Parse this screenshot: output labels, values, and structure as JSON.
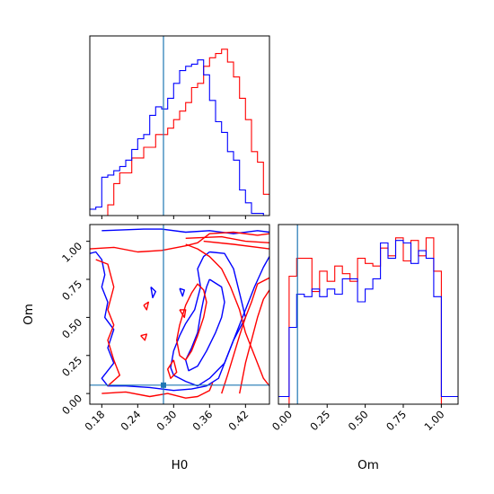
{
  "chart_data": [
    {
      "panel": "H0 marginal",
      "type": "step-histogram",
      "xlim": [
        0.16,
        0.46
      ],
      "truth_x": 0.283,
      "series": [
        {
          "color": "#ff0000",
          "edges": [
            0.16,
            0.19,
            0.2,
            0.21,
            0.22,
            0.23,
            0.24,
            0.25,
            0.26,
            0.27,
            0.28,
            0.29,
            0.3,
            0.31,
            0.32,
            0.33,
            0.34,
            0.35,
            0.36,
            0.37,
            0.38,
            0.39,
            0.4,
            0.41,
            0.42,
            0.43,
            0.44,
            0.45,
            0.46
          ],
          "values": [
            0,
            5,
            15,
            20,
            20,
            27,
            27,
            32,
            32,
            38,
            38,
            41,
            45,
            49,
            53,
            60,
            62,
            70,
            74,
            76,
            78,
            72,
            65,
            55,
            45,
            30,
            25,
            10
          ]
        },
        {
          "color": "#0000ff",
          "edges": [
            0.16,
            0.17,
            0.18,
            0.19,
            0.2,
            0.21,
            0.22,
            0.23,
            0.24,
            0.25,
            0.26,
            0.27,
            0.28,
            0.29,
            0.3,
            0.31,
            0.32,
            0.33,
            0.34,
            0.35,
            0.36,
            0.37,
            0.38,
            0.39,
            0.4,
            0.41,
            0.42,
            0.43,
            0.44,
            0.45,
            0.46
          ],
          "values": [
            3,
            4,
            18,
            19,
            21,
            23,
            26,
            31,
            36,
            38,
            47,
            51,
            50,
            55,
            62,
            68,
            70,
            71,
            73,
            66,
            54,
            44,
            39,
            30,
            26,
            12,
            6,
            1,
            1,
            0
          ]
        }
      ]
    },
    {
      "panel": "Om marginal",
      "type": "step-histogram",
      "xlim": [
        -0.07,
        1.11
      ],
      "truth_x": 0.055,
      "xticks": [
        "0.00",
        "0.25",
        "0.50",
        "0.75",
        "1.00"
      ],
      "xlabel": "Om",
      "series": [
        {
          "color": "#ff0000",
          "edges": [
            -0.07,
            0.0,
            0.05,
            0.1,
            0.15,
            0.2,
            0.25,
            0.3,
            0.35,
            0.4,
            0.45,
            0.5,
            0.55,
            0.6,
            0.65,
            0.7,
            0.75,
            0.8,
            0.85,
            0.9,
            0.95,
            1.0,
            1.11
          ],
          "values": [
            0,
            50,
            57,
            57,
            44,
            52,
            48,
            54,
            51,
            48,
            57,
            55,
            54,
            61,
            58,
            65,
            56,
            64,
            58,
            65,
            52,
            0
          ]
        },
        {
          "color": "#0000ff",
          "edges": [
            -0.07,
            0.0,
            0.05,
            0.1,
            0.15,
            0.2,
            0.25,
            0.3,
            0.35,
            0.4,
            0.45,
            0.5,
            0.55,
            0.6,
            0.65,
            0.7,
            0.75,
            0.8,
            0.85,
            0.9,
            0.95,
            1.0,
            1.11
          ],
          "values": [
            3,
            30,
            43,
            42,
            45,
            42,
            45,
            43,
            49,
            49,
            40,
            45,
            49,
            63,
            57,
            64,
            63,
            55,
            60,
            57,
            42,
            3
          ]
        }
      ]
    },
    {
      "panel": "H0 vs Om joint",
      "type": "contour",
      "xlim": [
        0.16,
        0.46
      ],
      "ylim": [
        -0.07,
        1.11
      ],
      "xticks": [
        "0.18",
        "0.24",
        "0.30",
        "0.36",
        "0.42"
      ],
      "yticks": [
        "0.00",
        "0.25",
        "0.50",
        "0.75",
        "1.00"
      ],
      "xlabel": "H0",
      "ylabel": "Om",
      "truth": [
        0.283,
        0.055
      ],
      "series": [
        {
          "color": "#0000ff",
          "contours": [
            [
              [
                0.16,
                0.92
              ],
              [
                0.17,
                0.93
              ],
              [
                0.18,
                0.88
              ],
              [
                0.185,
                0.78
              ],
              [
                0.18,
                0.7
              ],
              [
                0.19,
                0.6
              ],
              [
                0.185,
                0.5
              ],
              [
                0.2,
                0.42
              ],
              [
                0.19,
                0.3
              ],
              [
                0.2,
                0.2
              ],
              [
                0.18,
                0.1
              ],
              [
                0.19,
                0.05
              ],
              [
                0.22,
                0.05
              ],
              [
                0.26,
                0.04
              ],
              [
                0.3,
                0.02
              ],
              [
                0.33,
                0.03
              ],
              [
                0.355,
                0.05
              ],
              [
                0.375,
                0.1
              ],
              [
                0.39,
                0.25
              ],
              [
                0.405,
                0.4
              ],
              [
                0.42,
                0.55
              ],
              [
                0.435,
                0.7
              ],
              [
                0.45,
                0.83
              ],
              [
                0.46,
                0.9
              ]
            ],
            [
              [
                0.18,
                1.07
              ],
              [
                0.25,
                1.08
              ],
              [
                0.28,
                1.08
              ],
              [
                0.32,
                1.06
              ],
              [
                0.36,
                1.07
              ],
              [
                0.4,
                1.05
              ],
              [
                0.44,
                1.07
              ],
              [
                0.46,
                1.06
              ]
            ],
            [
              [
                0.36,
                0.93
              ],
              [
                0.385,
                0.92
              ],
              [
                0.4,
                0.82
              ],
              [
                0.41,
                0.66
              ],
              [
                0.42,
                0.5
              ],
              [
                0.4,
                0.35
              ],
              [
                0.385,
                0.2
              ],
              [
                0.36,
                0.1
              ],
              [
                0.34,
                0.05
              ],
              [
                0.32,
                0.08
              ],
              [
                0.3,
                0.12
              ],
              [
                0.295,
                0.17
              ],
              [
                0.3,
                0.28
              ],
              [
                0.31,
                0.38
              ],
              [
                0.32,
                0.46
              ],
              [
                0.335,
                0.55
              ],
              [
                0.345,
                0.7
              ],
              [
                0.34,
                0.82
              ],
              [
                0.35,
                0.9
              ],
              [
                0.36,
                0.93
              ]
            ],
            [
              [
                0.36,
                0.75
              ],
              [
                0.38,
                0.7
              ],
              [
                0.385,
                0.6
              ],
              [
                0.38,
                0.5
              ],
              [
                0.37,
                0.4
              ],
              [
                0.355,
                0.28
              ],
              [
                0.34,
                0.18
              ],
              [
                0.325,
                0.15
              ],
              [
                0.32,
                0.22
              ],
              [
                0.33,
                0.3
              ],
              [
                0.34,
                0.4
              ],
              [
                0.345,
                0.52
              ],
              [
                0.35,
                0.62
              ],
              [
                0.355,
                0.7
              ],
              [
                0.36,
                0.75
              ]
            ],
            [
              [
                0.262,
                0.7
              ],
              [
                0.265,
                0.63
              ],
              [
                0.27,
                0.67
              ],
              [
                0.262,
                0.7
              ]
            ],
            [
              [
                0.31,
                0.69
              ],
              [
                0.315,
                0.64
              ],
              [
                0.318,
                0.68
              ],
              [
                0.31,
                0.69
              ]
            ]
          ]
        },
        {
          "color": "#ff0000",
          "contours": [
            [
              [
                0.16,
                0.95
              ],
              [
                0.2,
                0.96
              ],
              [
                0.24,
                0.93
              ],
              [
                0.28,
                0.94
              ],
              [
                0.32,
                0.97
              ],
              [
                0.34,
                0.99
              ],
              [
                0.36,
                1.05
              ],
              [
                0.4,
                1.06
              ],
              [
                0.44,
                1.04
              ],
              [
                0.46,
                1.05
              ]
            ],
            [
              [
                0.32,
                1.02
              ],
              [
                0.38,
                1.03
              ],
              [
                0.42,
                1.0
              ],
              [
                0.46,
                0.99
              ]
            ],
            [
              [
                0.32,
                0.98
              ],
              [
                0.34,
                0.95
              ],
              [
                0.36,
                0.9
              ],
              [
                0.38,
                0.82
              ],
              [
                0.395,
                0.7
              ],
              [
                0.41,
                0.55
              ],
              [
                0.42,
                0.4
              ],
              [
                0.435,
                0.25
              ],
              [
                0.45,
                0.1
              ],
              [
                0.46,
                0.05
              ]
            ],
            [
              [
                0.35,
                1.0
              ],
              [
                0.4,
                0.98
              ],
              [
                0.46,
                0.95
              ]
            ],
            [
              [
                0.41,
                0.0
              ],
              [
                0.42,
                0.2
              ],
              [
                0.43,
                0.35
              ],
              [
                0.44,
                0.5
              ],
              [
                0.45,
                0.62
              ],
              [
                0.46,
                0.68
              ]
            ],
            [
              [
                0.38,
                0.0
              ],
              [
                0.39,
                0.12
              ],
              [
                0.4,
                0.25
              ],
              [
                0.41,
                0.38
              ],
              [
                0.42,
                0.5
              ],
              [
                0.43,
                0.6
              ],
              [
                0.44,
                0.72
              ],
              [
                0.46,
                0.76
              ]
            ],
            [
              [
                0.18,
                0.0
              ],
              [
                0.22,
                0.01
              ],
              [
                0.26,
                -0.02
              ],
              [
                0.29,
                0.0
              ],
              [
                0.32,
                -0.03
              ],
              [
                0.34,
                -0.02
              ],
              [
                0.36,
                0.02
              ],
              [
                0.365,
                0.07
              ]
            ],
            [
              [
                0.17,
                0.88
              ],
              [
                0.19,
                0.85
              ],
              [
                0.2,
                0.7
              ],
              [
                0.19,
                0.55
              ],
              [
                0.2,
                0.45
              ],
              [
                0.19,
                0.35
              ],
              [
                0.2,
                0.22
              ],
              [
                0.21,
                0.12
              ],
              [
                0.19,
                0.05
              ]
            ],
            [
              [
                0.32,
                0.22
              ],
              [
                0.33,
                0.28
              ],
              [
                0.34,
                0.38
              ],
              [
                0.35,
                0.5
              ],
              [
                0.355,
                0.6
              ],
              [
                0.35,
                0.68
              ],
              [
                0.34,
                0.72
              ],
              [
                0.33,
                0.66
              ],
              [
                0.32,
                0.58
              ],
              [
                0.31,
                0.45
              ],
              [
                0.305,
                0.35
              ],
              [
                0.31,
                0.25
              ],
              [
                0.32,
                0.22
              ]
            ],
            [
              [
                0.3,
                0.22
              ],
              [
                0.305,
                0.14
              ],
              [
                0.295,
                0.1
              ],
              [
                0.29,
                0.16
              ],
              [
                0.3,
                0.22
              ]
            ],
            [
              [
                0.25,
                0.58
              ],
              [
                0.255,
                0.55
              ],
              [
                0.258,
                0.6
              ],
              [
                0.25,
                0.58
              ]
            ],
            [
              [
                0.245,
                0.38
              ],
              [
                0.252,
                0.35
              ],
              [
                0.255,
                0.39
              ],
              [
                0.245,
                0.38
              ]
            ],
            [
              [
                0.31,
                0.55
              ],
              [
                0.318,
                0.5
              ],
              [
                0.32,
                0.55
              ],
              [
                0.31,
                0.55
              ]
            ]
          ]
        }
      ]
    }
  ]
}
